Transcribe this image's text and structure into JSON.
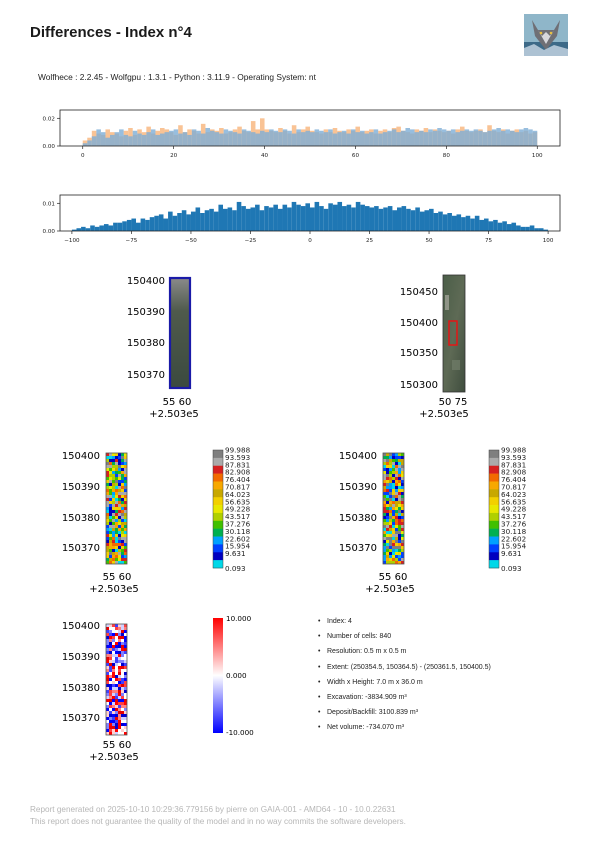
{
  "title": "Differences - Index n°4",
  "versions": "Wolfhece : 2.2.45 - Wolfgpu : 1.3.1 - Python : 3.11.9 - Operating System: nt",
  "logo": {
    "icon": "wolf-logo-icon"
  },
  "chart_data": [
    {
      "type": "bar",
      "title": "",
      "xlabel": "",
      "ylabel": "",
      "xlim": [
        -5,
        105
      ],
      "ylim": [
        0,
        0.026
      ],
      "x_ticks": [
        "0",
        "20",
        "40",
        "60",
        "80",
        "100"
      ],
      "y_ticks": [
        "0.00",
        "0.02"
      ],
      "series": [
        {
          "color": "#f7b47a",
          "values": [
            0.004,
            0.006,
            0.011,
            0.009,
            0.008,
            0.012,
            0.01,
            0.009,
            0.007,
            0.011,
            0.013,
            0.008,
            0.012,
            0.01,
            0.014,
            0.009,
            0.011,
            0.013,
            0.012,
            0.01,
            0.008,
            0.015,
            0.01,
            0.012,
            0.011,
            0.009,
            0.016,
            0.01,
            0.012,
            0.011,
            0.013,
            0.009,
            0.01,
            0.012,
            0.014,
            0.011,
            0.01,
            0.018,
            0.012,
            0.02,
            0.012,
            0.011,
            0.01,
            0.013,
            0.011,
            0.009,
            0.015,
            0.01,
            0.012,
            0.014,
            0.011,
            0.01,
            0.009,
            0.012,
            0.01,
            0.013,
            0.011,
            0.01,
            0.012,
            0.011,
            0.014,
            0.01,
            0.011,
            0.012,
            0.009,
            0.011,
            0.012,
            0.01,
            0.013,
            0.014,
            0.011,
            0.01,
            0.009,
            0.012,
            0.011,
            0.013,
            0.01,
            0.012,
            0.011,
            0.01,
            0.011,
            0.009,
            0.012,
            0.014,
            0.011,
            0.01,
            0.011,
            0.012,
            0.01,
            0.015,
            0.011,
            0.01,
            0.012,
            0.009,
            0.011,
            0.012,
            0.01,
            0.011,
            0.009,
            0.01
          ]
        },
        {
          "color": "#7eaed6",
          "values": [
            0.002,
            0.004,
            0.007,
            0.012,
            0.01,
            0.006,
            0.008,
            0.01,
            0.012,
            0.008,
            0.007,
            0.011,
            0.009,
            0.008,
            0.01,
            0.012,
            0.008,
            0.009,
            0.01,
            0.011,
            0.012,
            0.009,
            0.01,
            0.008,
            0.012,
            0.011,
            0.009,
            0.013,
            0.011,
            0.01,
            0.009,
            0.012,
            0.011,
            0.01,
            0.009,
            0.012,
            0.011,
            0.01,
            0.009,
            0.011,
            0.01,
            0.012,
            0.011,
            0.01,
            0.012,
            0.011,
            0.009,
            0.012,
            0.01,
            0.011,
            0.01,
            0.012,
            0.011,
            0.01,
            0.012,
            0.009,
            0.01,
            0.011,
            0.009,
            0.012,
            0.01,
            0.011,
            0.009,
            0.01,
            0.012,
            0.009,
            0.01,
            0.011,
            0.012,
            0.01,
            0.011,
            0.013,
            0.012,
            0.01,
            0.011,
            0.01,
            0.012,
            0.011,
            0.013,
            0.012,
            0.011,
            0.012,
            0.01,
            0.011,
            0.012,
            0.011,
            0.012,
            0.011,
            0.01,
            0.011,
            0.012,
            0.013,
            0.011,
            0.012,
            0.011,
            0.01,
            0.012,
            0.013,
            0.012,
            0.011
          ]
        }
      ]
    },
    {
      "type": "bar",
      "title": "",
      "xlabel": "",
      "ylabel": "",
      "xlim": [
        -105,
        105
      ],
      "ylim": [
        0,
        0.013
      ],
      "x_ticks": [
        "−100",
        "−75",
        "−50",
        "−25",
        "0",
        "25",
        "50",
        "75",
        "100"
      ],
      "y_ticks": [
        "0.00",
        "0.01"
      ],
      "series": [
        {
          "color": "#1f77b4",
          "values": [
            0.0005,
            0.001,
            0.0015,
            0.001,
            0.002,
            0.0015,
            0.002,
            0.0025,
            0.002,
            0.003,
            0.003,
            0.0035,
            0.004,
            0.0045,
            0.003,
            0.0045,
            0.004,
            0.005,
            0.0055,
            0.006,
            0.0045,
            0.007,
            0.0055,
            0.0065,
            0.0075,
            0.006,
            0.007,
            0.0085,
            0.0065,
            0.0075,
            0.008,
            0.007,
            0.0095,
            0.008,
            0.0085,
            0.0075,
            0.0105,
            0.009,
            0.008,
            0.0085,
            0.0095,
            0.0075,
            0.009,
            0.0085,
            0.0095,
            0.008,
            0.0095,
            0.0085,
            0.0105,
            0.0095,
            0.009,
            0.01,
            0.0085,
            0.0105,
            0.009,
            0.008,
            0.01,
            0.0095,
            0.0105,
            0.009,
            0.0095,
            0.0085,
            0.0105,
            0.0095,
            0.009,
            0.0085,
            0.009,
            0.008,
            0.0085,
            0.009,
            0.0075,
            0.0085,
            0.009,
            0.008,
            0.0075,
            0.0085,
            0.007,
            0.0075,
            0.008,
            0.0065,
            0.007,
            0.006,
            0.0065,
            0.0055,
            0.006,
            0.005,
            0.0055,
            0.0045,
            0.0055,
            0.004,
            0.0045,
            0.0035,
            0.004,
            0.003,
            0.0035,
            0.0025,
            0.003,
            0.002,
            0.0015,
            0.0015,
            0.002,
            0.001,
            0.001,
            0.0005
          ]
        }
      ]
    }
  ],
  "maps": {
    "map1": {
      "yticks": [
        "150400",
        "150390",
        "150380",
        "150370"
      ],
      "xticks": "55 60",
      "offset": "+2.503e5"
    },
    "map2": {
      "yticks": [
        "150450",
        "150400",
        "150350",
        "150300"
      ],
      "xticks": "50 75",
      "offset": "+2.503e5"
    },
    "map3": {
      "yticks": [
        "150400",
        "150390",
        "150380",
        "150370"
      ],
      "xticks": "55 60",
      "offset": "+2.503e5"
    },
    "map4": {
      "yticks": [
        "150400",
        "150390",
        "150380",
        "150370"
      ],
      "xticks": "55 60",
      "offset": "+2.503e5"
    },
    "map5": {
      "yticks": [
        "150400",
        "150390",
        "150380",
        "150370"
      ],
      "xticks": "55 60",
      "offset": "+2.503e5"
    }
  },
  "colorbar_terrain": {
    "labels": [
      "99.988",
      "93.593",
      "87.831",
      "82.908",
      "76.404",
      "70.817",
      "64.023",
      "56.635",
      "49.228",
      "43.517",
      "37.276",
      "30.118",
      "22.602",
      "15.954",
      "9.631",
      "0.093"
    ],
    "colors": [
      "#7f7f7f",
      "#aaaaaa",
      "#d62020",
      "#f26a00",
      "#f7a800",
      "#c8a800",
      "#f2d000",
      "#e8e800",
      "#b0d000",
      "#40c000",
      "#00b050",
      "#00a0ff",
      "#0040ff",
      "#0000c0",
      "#00d8e8",
      "#40e0ff"
    ]
  },
  "colorbar_diff": {
    "labels": [
      "10.000",
      "0.000",
      "-10.000"
    ],
    "colors": [
      "#ff0000",
      "#ffffff",
      "#0000ff"
    ]
  },
  "info": [
    "Index: 4",
    "Number of cells: 840",
    "Resolution: 0.5 m x 0.5 m",
    "Extent: (250354.5, 150364.5) - (250361.5, 150400.5)",
    "Width x Height: 7.0 m x 36.0 m",
    "Excavation: -3834.909 m³",
    "Deposit/Backfill: 3100.839 m³",
    "Net volume: -734.070 m³"
  ],
  "footer": {
    "line1": "Report generated on 2025-10-10 10:29:36.779156 by pierre on GAIA-001 - AMD64 - 10 - 10.0.22631",
    "line2": "This report does not guarantee the quality of the model and in no way commits the software developers."
  }
}
